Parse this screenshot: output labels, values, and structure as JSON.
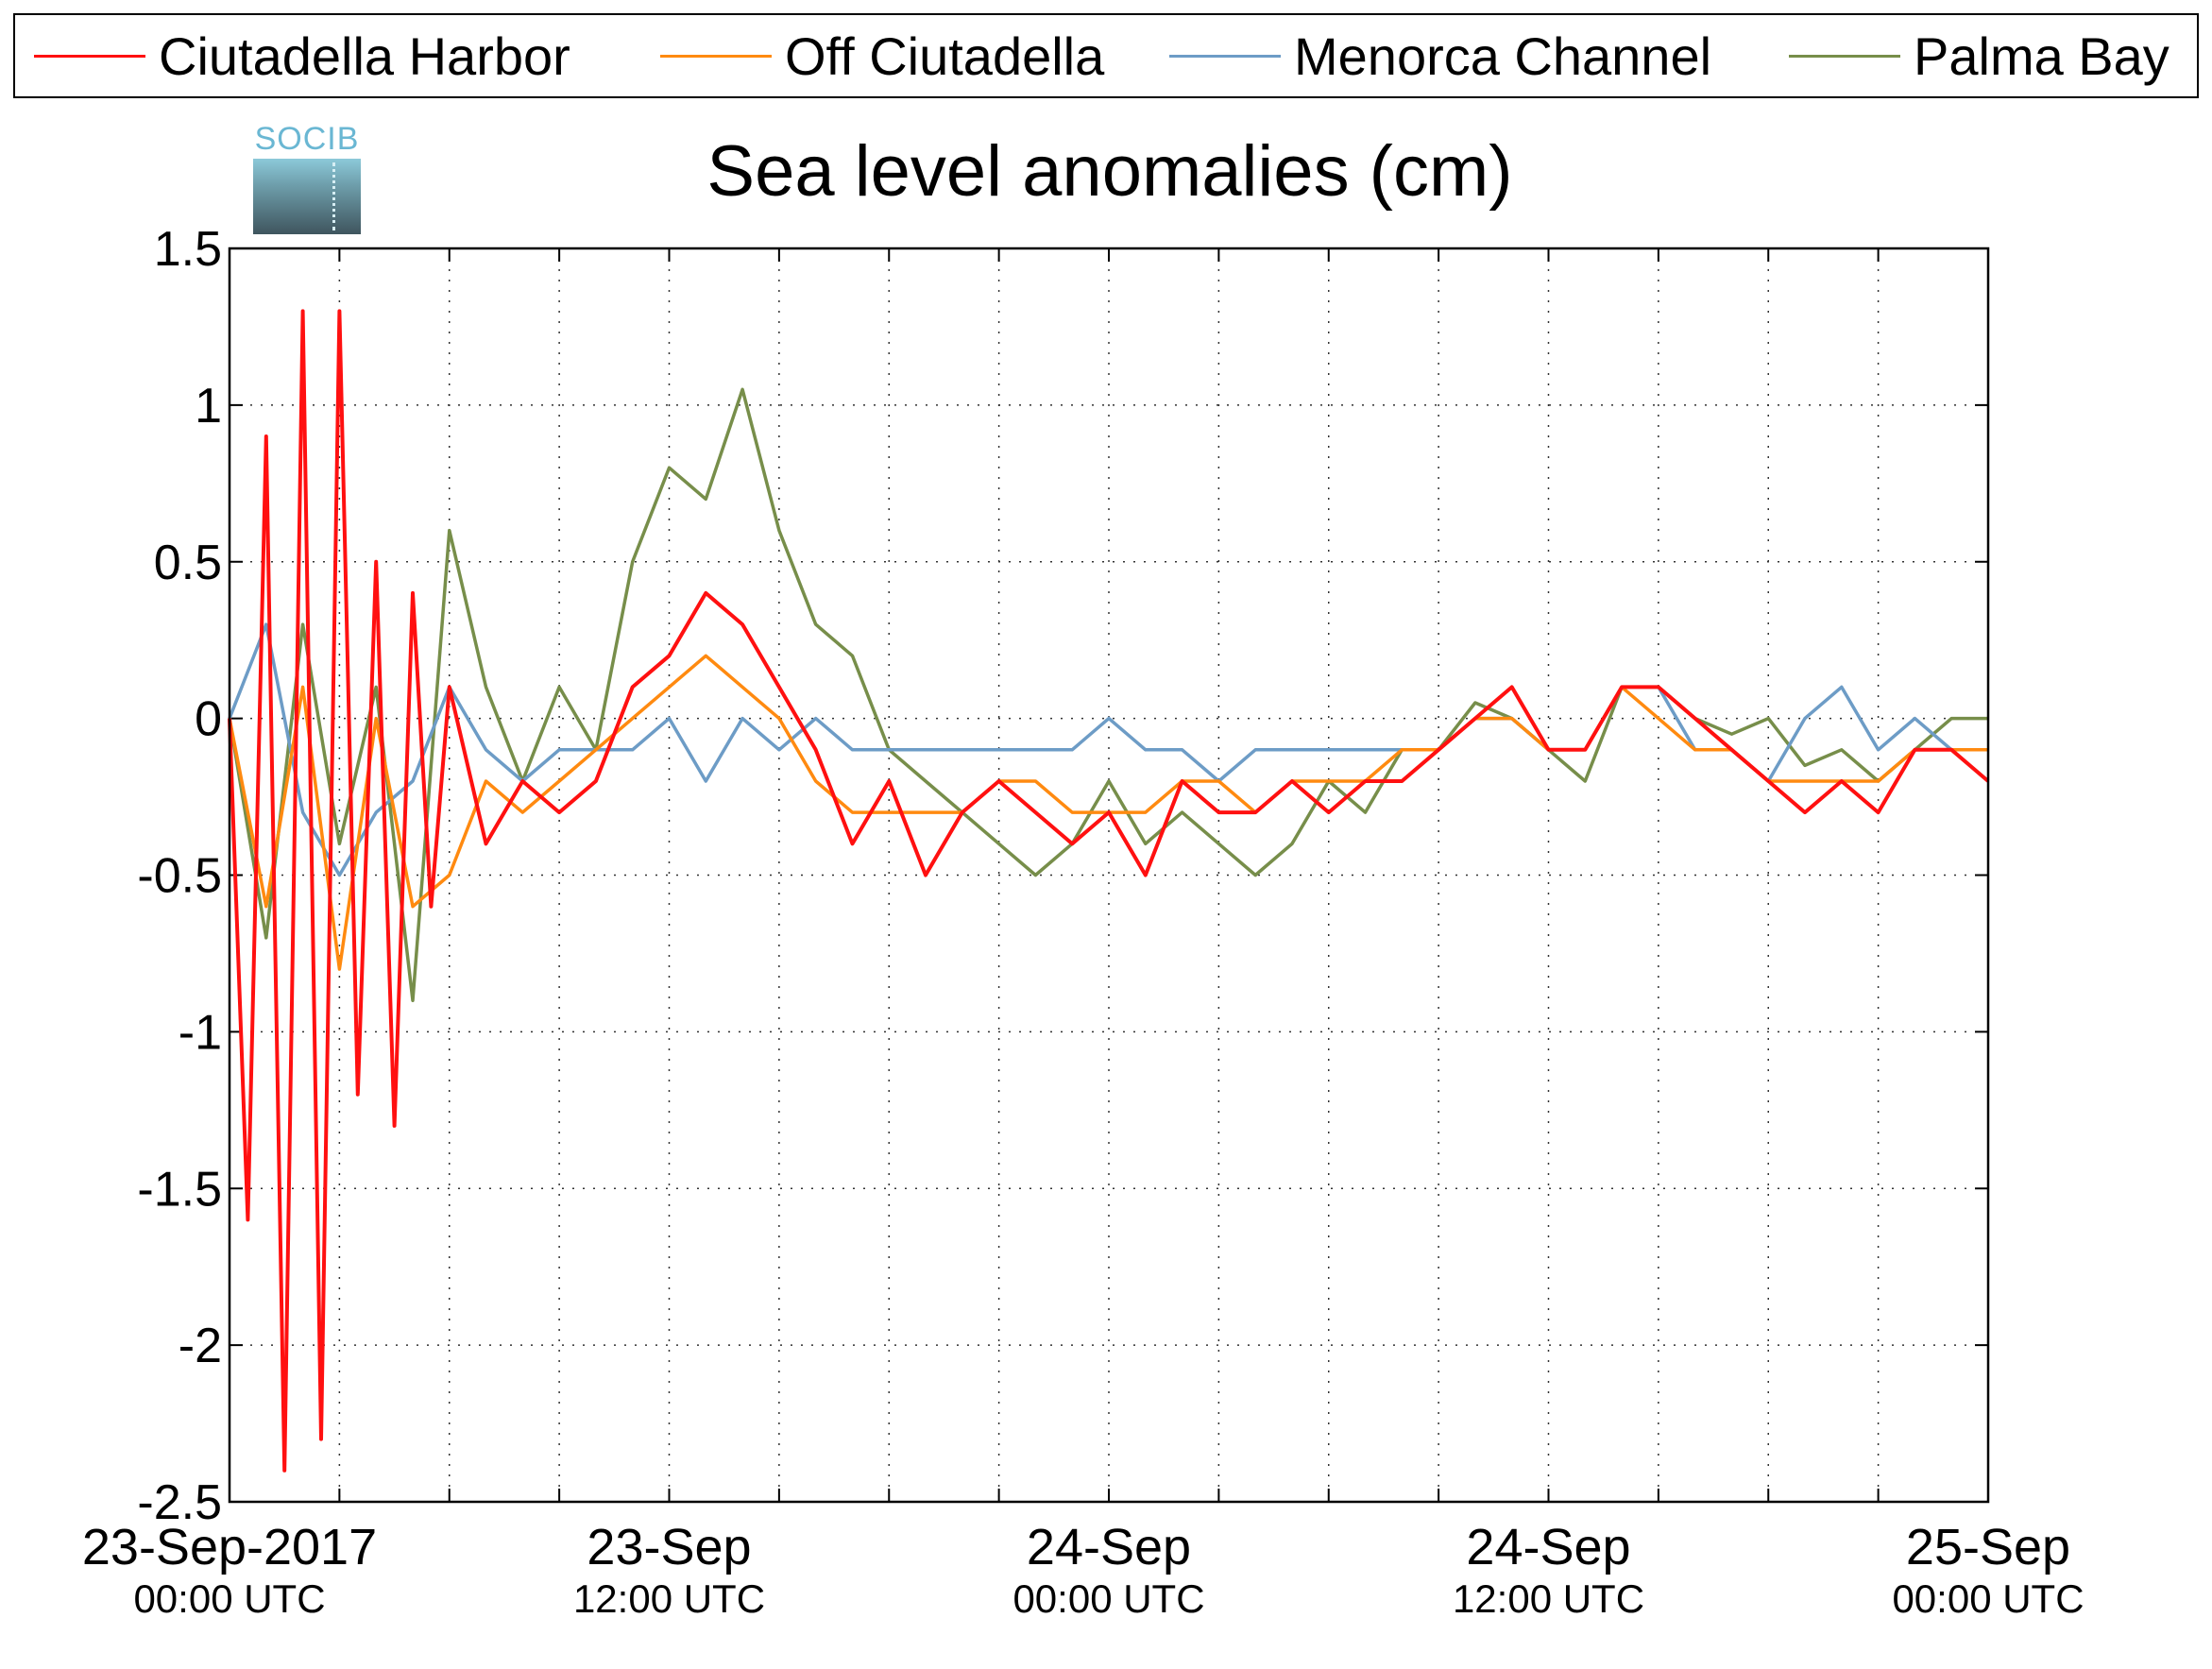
{
  "legend": [
    {
      "name": "Ciutadella Harbor",
      "color": "#ff1010"
    },
    {
      "name": "Off Ciutadella",
      "color": "#ff8a10"
    },
    {
      "name": "Menorca Channel",
      "color": "#6d9cc6"
    },
    {
      "name": "Palma Bay",
      "color": "#778e4a"
    }
  ],
  "logo": {
    "text": "SOCIB",
    "icon": "socib-logo-icon"
  },
  "chart_data": {
    "type": "line",
    "title": "Sea level anomalies (cm)",
    "xlabel": "",
    "ylabel": "",
    "ylim": [
      -2.5,
      1.5
    ],
    "xlim_hours": [
      0,
      48
    ],
    "yticks": [
      "1.5",
      "1",
      "0.5",
      "0",
      "-0.5",
      "-1",
      "-1.5",
      "-2",
      "-2.5"
    ],
    "xticks": [
      {
        "date": "23-Sep-2017",
        "time": "00:00 UTC"
      },
      {
        "date": "23-Sep",
        "time": "12:00 UTC"
      },
      {
        "date": "24-Sep",
        "time": "00:00 UTC"
      },
      {
        "date": "24-Sep",
        "time": "12:00 UTC"
      },
      {
        "date": "25-Sep",
        "time": "00:00 UTC"
      }
    ],
    "grid": true,
    "legend_position": "top",
    "series": [
      {
        "name": "Ciutadella Harbor",
        "x": [
          0,
          0.5,
          1,
          1.5,
          2,
          2.5,
          3,
          3.5,
          4,
          4.5,
          5,
          5.5,
          6,
          7,
          8,
          9,
          10,
          11,
          12,
          13,
          14,
          15,
          16,
          17,
          18,
          19,
          20,
          21,
          22,
          23,
          24,
          25,
          26,
          27,
          28,
          29,
          30,
          31,
          32,
          33,
          34,
          35,
          36,
          37,
          38,
          39,
          40,
          41,
          42,
          43,
          44,
          45,
          46,
          47,
          48
        ],
        "y": [
          0,
          -1.6,
          0.9,
          -2.4,
          1.3,
          -2.3,
          1.3,
          -1.2,
          0.5,
          -1.3,
          0.4,
          -0.6,
          0.1,
          -0.4,
          -0.2,
          -0.3,
          -0.2,
          0.1,
          0.2,
          0.4,
          0.3,
          0.1,
          -0.1,
          -0.4,
          -0.2,
          -0.5,
          -0.3,
          -0.2,
          -0.3,
          -0.4,
          -0.3,
          -0.5,
          -0.2,
          -0.3,
          -0.3,
          -0.2,
          -0.3,
          -0.2,
          -0.2,
          -0.1,
          0.0,
          0.1,
          -0.1,
          -0.1,
          0.1,
          0.1,
          0.0,
          -0.1,
          -0.2,
          -0.3,
          -0.2,
          -0.3,
          -0.1,
          -0.1,
          -0.2
        ]
      },
      {
        "name": "Off Ciutadella",
        "x": [
          0,
          1,
          2,
          3,
          4,
          5,
          6,
          7,
          8,
          9,
          10,
          11,
          12,
          13,
          14,
          15,
          16,
          17,
          18,
          19,
          20,
          21,
          22,
          23,
          24,
          25,
          26,
          27,
          28,
          29,
          30,
          31,
          32,
          33,
          34,
          35,
          36,
          37,
          38,
          39,
          40,
          41,
          42,
          43,
          44,
          45,
          46,
          47,
          48
        ],
        "y": [
          0,
          -0.6,
          0.1,
          -0.8,
          0.0,
          -0.6,
          -0.5,
          -0.2,
          -0.3,
          -0.2,
          -0.1,
          0.0,
          0.1,
          0.2,
          0.1,
          0.0,
          -0.2,
          -0.3,
          -0.3,
          -0.3,
          -0.3,
          -0.2,
          -0.2,
          -0.3,
          -0.3,
          -0.3,
          -0.2,
          -0.2,
          -0.3,
          -0.2,
          -0.2,
          -0.2,
          -0.1,
          -0.1,
          0.0,
          0.0,
          -0.1,
          -0.1,
          0.1,
          0.0,
          -0.1,
          -0.1,
          -0.2,
          -0.2,
          -0.2,
          -0.2,
          -0.1,
          -0.1,
          -0.1
        ]
      },
      {
        "name": "Menorca Channel",
        "x": [
          0,
          1,
          2,
          3,
          4,
          5,
          6,
          7,
          8,
          9,
          10,
          11,
          12,
          13,
          14,
          15,
          16,
          17,
          18,
          19,
          20,
          21,
          22,
          23,
          24,
          25,
          26,
          27,
          28,
          29,
          30,
          31,
          32,
          33,
          34,
          35,
          36,
          37,
          38,
          39,
          40,
          41,
          42,
          43,
          44,
          45,
          46,
          47,
          48
        ],
        "y": [
          0,
          0.3,
          -0.3,
          -0.5,
          -0.3,
          -0.2,
          0.1,
          -0.1,
          -0.2,
          -0.1,
          -0.1,
          -0.1,
          0.0,
          -0.2,
          0.0,
          -0.1,
          0.0,
          -0.1,
          -0.1,
          -0.1,
          -0.1,
          -0.1,
          -0.1,
          -0.1,
          0.0,
          -0.1,
          -0.1,
          -0.2,
          -0.1,
          -0.1,
          -0.1,
          -0.1,
          -0.1,
          -0.1,
          0.0,
          0.0,
          -0.1,
          -0.1,
          0.1,
          0.1,
          -0.1,
          -0.1,
          -0.2,
          0.0,
          0.1,
          -0.1,
          0.0,
          -0.1,
          -0.1
        ]
      },
      {
        "name": "Palma Bay",
        "x": [
          0,
          1,
          2,
          3,
          4,
          5,
          6,
          7,
          8,
          9,
          10,
          11,
          12,
          13,
          14,
          15,
          16,
          17,
          18,
          19,
          20,
          21,
          22,
          23,
          24,
          25,
          26,
          27,
          28,
          29,
          30,
          31,
          32,
          33,
          34,
          35,
          36,
          37,
          38,
          39,
          40,
          41,
          42,
          43,
          44,
          45,
          46,
          47,
          48
        ],
        "y": [
          0,
          -0.7,
          0.3,
          -0.4,
          0.1,
          -0.9,
          0.6,
          0.1,
          -0.2,
          0.1,
          -0.1,
          0.5,
          0.8,
          0.7,
          1.05,
          0.6,
          0.3,
          0.2,
          -0.1,
          -0.2,
          -0.3,
          -0.4,
          -0.5,
          -0.4,
          -0.2,
          -0.4,
          -0.3,
          -0.4,
          -0.5,
          -0.4,
          -0.2,
          -0.3,
          -0.1,
          -0.1,
          0.05,
          0.0,
          -0.1,
          -0.2,
          0.1,
          0.1,
          0.0,
          -0.05,
          0.0,
          -0.15,
          -0.1,
          -0.2,
          -0.1,
          0.0,
          0.0
        ]
      }
    ]
  }
}
